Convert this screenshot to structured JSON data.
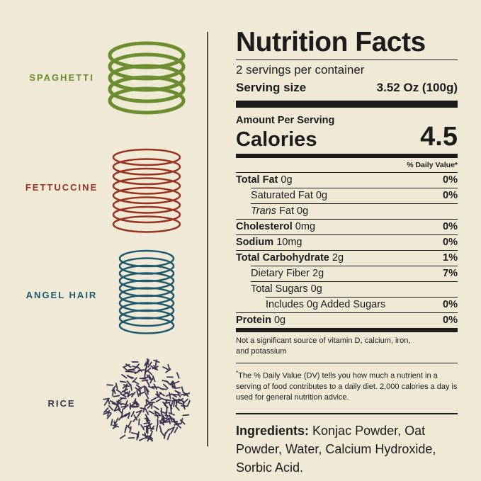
{
  "labels": [
    "SPAGHETTI",
    "FETTUCCINE",
    "ANGEL HAIR",
    "RICE"
  ],
  "nutrition": {
    "title": "Nutrition Facts",
    "servings": "2 servings per container",
    "serving_size_label": "Serving size",
    "serving_size": "3.52 Oz (100g)",
    "amount_per_serving": "Amount Per Serving",
    "calories_label": "Calories",
    "calories": 4.5,
    "dv_header": "% Daily Value*",
    "rows": [
      {
        "label": "Total Fat",
        "amount": "0g",
        "dv": "0%",
        "bold": true,
        "indent": 0
      },
      {
        "label": "Saturated Fat 0g",
        "dv": "0%",
        "indent": 1
      },
      {
        "italic": "Trans",
        "label": "Fat 0g",
        "indent": 1
      },
      {
        "label": "Cholesterol",
        "amount": "0mg",
        "dv": "0%",
        "bold": true,
        "indent": 0
      },
      {
        "label": "Sodium",
        "amount": "10mg",
        "dv": "0%",
        "bold": true,
        "indent": 0
      },
      {
        "label": "Total Carbohydrate",
        "amount": "2g",
        "dv": "1%",
        "bold": true,
        "indent": 0
      },
      {
        "label": "Dietary Fiber 2g",
        "dv": "7%",
        "indent": 1
      },
      {
        "label": "Total Sugars 0g",
        "indent": 1
      },
      {
        "label": "Includes 0g Added Sugars",
        "dv": "0%",
        "indent": 2
      },
      {
        "label": "Protein",
        "amount": "0g",
        "dv": "0%",
        "bold": true,
        "indent": 0
      }
    ],
    "note": "Not a significant source of vitamin D, calcium, iron, and potassium",
    "footnote_mark": "*",
    "footnote": "The % Daily Value (DV) tells you how much a nutrient in a serving of food contributes to a daily diet. 2,000 calories a day is used for general nutrition advice.",
    "ingredients_label": "Ingredients:",
    "ingredients": "Konjac Powder, Oat Powder, Water, Calcium Hydroxide, Sorbic Acid."
  }
}
